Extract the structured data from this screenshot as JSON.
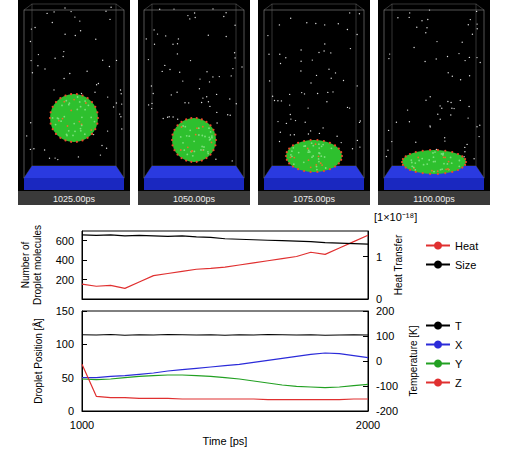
{
  "snapshots": [
    {
      "label": "1025.00ps"
    },
    {
      "label": "1050.00ps"
    },
    {
      "label": "1075.00ps"
    },
    {
      "label": "1100.00ps"
    }
  ],
  "chart_data": [
    {
      "type": "line",
      "x": [
        1000,
        1050,
        1100,
        1150,
        1200,
        1250,
        1300,
        1350,
        1400,
        1450,
        1500,
        1550,
        1600,
        1650,
        1700,
        1750,
        1800,
        1850,
        1900,
        1950,
        2000
      ],
      "xlim": [
        1000,
        2000
      ],
      "y_label": "Number of\nDroplet molecules",
      "ylim": [
        0,
        700
      ],
      "yticks": [
        200,
        400,
        600
      ],
      "y2_label": "Heat Transfer",
      "y2lim": [
        0,
        1.6
      ],
      "y2ticks": [
        0,
        1
      ],
      "annotations": [
        "[1×10⁻¹⁸]"
      ],
      "tick_labels": "y",
      "grid": false,
      "legend": "right",
      "series": [
        {
          "name": "Heat",
          "color": "#e03030",
          "axis": "y2",
          "values": [
            0.35,
            0.3,
            0.32,
            0.25,
            0.4,
            0.55,
            0.6,
            0.65,
            0.7,
            0.72,
            0.75,
            0.8,
            0.85,
            0.9,
            0.95,
            1.0,
            1.1,
            1.05,
            1.2,
            1.35,
            1.5
          ]
        },
        {
          "name": "Size",
          "color": "#000000",
          "values": [
            660,
            655,
            660,
            650,
            655,
            650,
            645,
            650,
            640,
            635,
            620,
            615,
            610,
            605,
            600,
            595,
            590,
            580,
            575,
            570,
            565
          ]
        }
      ]
    },
    {
      "type": "line",
      "x": [
        1000,
        1050,
        1100,
        1150,
        1200,
        1250,
        1300,
        1350,
        1400,
        1450,
        1500,
        1550,
        1600,
        1650,
        1700,
        1750,
        1800,
        1850,
        1900,
        1950,
        2000
      ],
      "xlim": [
        1000,
        2000
      ],
      "xticks": [
        1000,
        2000
      ],
      "x_label": "Time [ps]",
      "y_label": "Droplet Position [Å]",
      "ylim": [
        0,
        150
      ],
      "yticks": [
        0,
        50,
        100,
        150
      ],
      "y2_label": "Temperature [K]",
      "y2lim": [
        -200,
        200
      ],
      "y2ticks": [
        -200,
        -100,
        0,
        100,
        200
      ],
      "grid": false,
      "legend": "right",
      "series": [
        {
          "name": "T",
          "color": "#000000",
          "axis": "y2",
          "values": [
            105,
            104,
            106,
            103,
            105,
            104,
            106,
            105,
            104,
            105,
            103,
            105,
            104,
            106,
            105,
            104,
            105,
            103,
            104,
            105,
            104
          ]
        },
        {
          "name": "X",
          "color": "#2b2bd9",
          "values": [
            50,
            50,
            52,
            53,
            55,
            57,
            60,
            62,
            64,
            66,
            68,
            70,
            73,
            76,
            79,
            82,
            85,
            87,
            86,
            83,
            80
          ]
        },
        {
          "name": "Y",
          "color": "#22a022",
          "values": [
            48,
            47,
            48,
            50,
            52,
            53,
            54,
            54,
            53,
            52,
            50,
            48,
            45,
            42,
            39,
            37,
            36,
            35,
            36,
            38,
            40
          ]
        },
        {
          "name": "Z",
          "color": "#e03030",
          "values": [
            70,
            22,
            20,
            20,
            19,
            19,
            19,
            18,
            18,
            18,
            18,
            18,
            18,
            17,
            17,
            17,
            17,
            17,
            17,
            18,
            18
          ]
        }
      ]
    }
  ]
}
